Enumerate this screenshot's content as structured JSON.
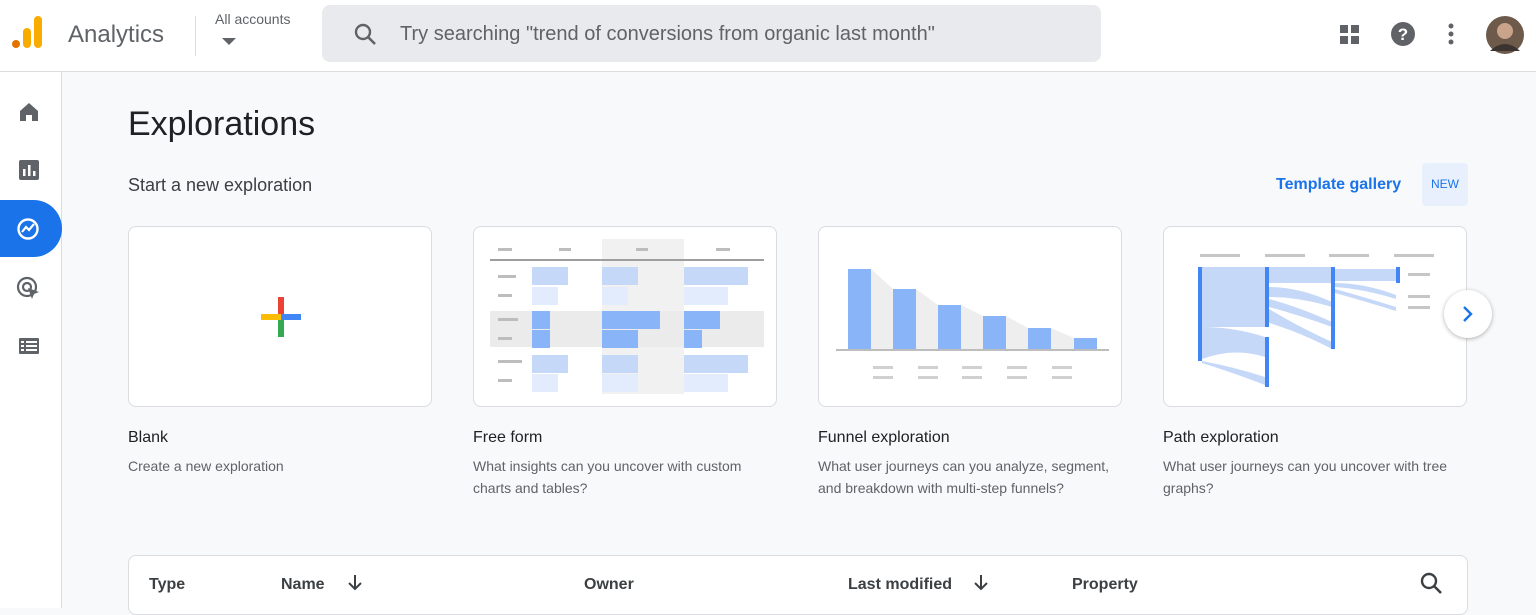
{
  "header": {
    "app_name": "Analytics",
    "account_label": "All accounts",
    "search_placeholder": "Try searching \"trend of conversions from organic last month\""
  },
  "page": {
    "title": "Explorations",
    "section_title": "Start a new exploration",
    "template_gallery": "Template gallery",
    "badge": "NEW"
  },
  "cards": [
    {
      "title": "Blank",
      "description": "Create a new exploration"
    },
    {
      "title": "Free form",
      "description": "What insights can you uncover with custom charts and tables?"
    },
    {
      "title": "Funnel exploration",
      "description": "What user journeys can you analyze, segment, and breakdown with multi-step funnels?"
    },
    {
      "title": "Path exploration",
      "description": "What user journeys can you uncover with tree graphs?"
    }
  ],
  "table": {
    "columns": [
      "Type",
      "Name",
      "Owner",
      "Last modified",
      "Property"
    ]
  }
}
